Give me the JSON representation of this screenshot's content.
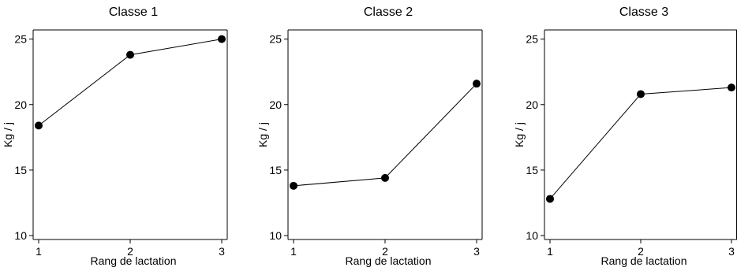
{
  "chart_data": [
    {
      "type": "line",
      "title": "Classe 1",
      "xlabel": "Rang de lactation",
      "ylabel": "Kg / j",
      "x": [
        1,
        2,
        3
      ],
      "y": [
        18.4,
        23.8,
        25.0
      ],
      "xticks": [
        "1",
        "2",
        "3"
      ],
      "yticks": [
        "10",
        "15",
        "20",
        "25"
      ],
      "ylim": [
        9.7,
        25.7
      ],
      "grid": false
    },
    {
      "type": "line",
      "title": "Classe 2",
      "xlabel": "Rang de lactation",
      "ylabel": "Kg / j",
      "x": [
        1,
        2,
        3
      ],
      "y": [
        13.8,
        14.4,
        21.6
      ],
      "xticks": [
        "1",
        "2",
        "3"
      ],
      "yticks": [
        "10",
        "15",
        "20",
        "25"
      ],
      "ylim": [
        9.7,
        25.7
      ],
      "grid": false
    },
    {
      "type": "line",
      "title": "Classe 3",
      "xlabel": "Rang de lactation",
      "ylabel": "Kg / j",
      "x": [
        1,
        2,
        3
      ],
      "y": [
        12.8,
        20.8,
        21.3
      ],
      "xticks": [
        "1",
        "2",
        "3"
      ],
      "yticks": [
        "10",
        "15",
        "20",
        "25"
      ],
      "ylim": [
        9.7,
        25.7
      ],
      "grid": false
    }
  ]
}
